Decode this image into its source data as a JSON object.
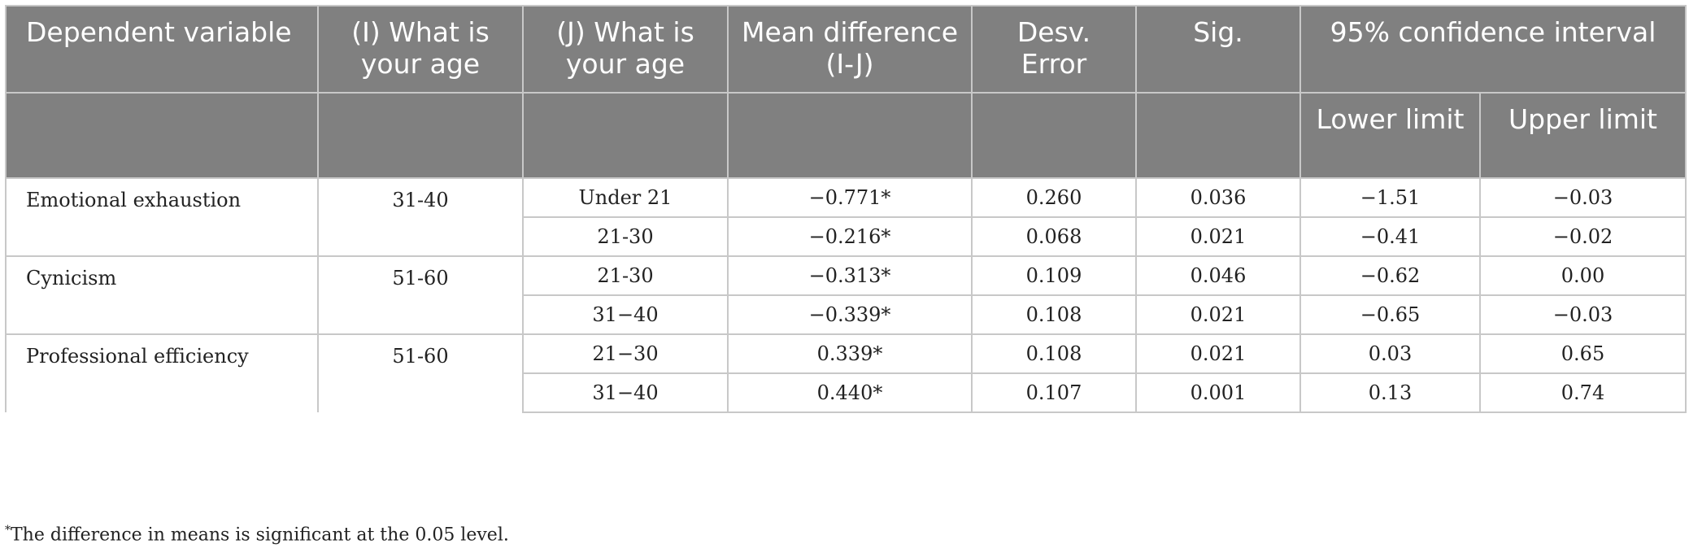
{
  "header": {
    "dependent_variable": "Dependent variable",
    "i_age": "(I) What is your age",
    "j_age": "(J) What is your age",
    "mean_difference": "Mean difference (I-J)",
    "std_error": "Desv. Error",
    "sig": "Sig.",
    "ci": "95% confidence interval",
    "lower": "Lower limit",
    "upper": "Upper limit"
  },
  "groups": [
    {
      "variable": "Emotional exhaustion",
      "i_age": "31-40",
      "rows": [
        {
          "j_age": "Under 21",
          "mean_diff": "−0.771*",
          "se": "0.260",
          "sig": "0.036",
          "lower": "−1.51",
          "upper": "−0.03"
        },
        {
          "j_age": "21-30",
          "mean_diff": "−0.216*",
          "se": "0.068",
          "sig": "0.021",
          "lower": "−0.41",
          "upper": "−0.02"
        }
      ]
    },
    {
      "variable": "Cynicism",
      "i_age": "51-60",
      "rows": [
        {
          "j_age": "21-30",
          "mean_diff": "−0.313*",
          "se": "0.109",
          "sig": "0.046",
          "lower": "−0.62",
          "upper": "0.00"
        },
        {
          "j_age": "31−40",
          "mean_diff": "−0.339*",
          "se": "0.108",
          "sig": "0.021",
          "lower": "−0.65",
          "upper": "−0.03"
        }
      ]
    },
    {
      "variable": "Professional efficiency",
      "i_age": "51-60",
      "rows": [
        {
          "j_age": "21−30",
          "mean_diff": "0.339*",
          "se": "0.108",
          "sig": "0.021",
          "lower": "0.03",
          "upper": "0.65"
        },
        {
          "j_age": "31−40",
          "mean_diff": "0.440*",
          "se": "0.107",
          "sig": "0.001",
          "lower": "0.13",
          "upper": "0.74"
        }
      ]
    }
  ],
  "footnote": {
    "marker": "*",
    "text": "The difference in means is significant at the 0.05 level."
  }
}
